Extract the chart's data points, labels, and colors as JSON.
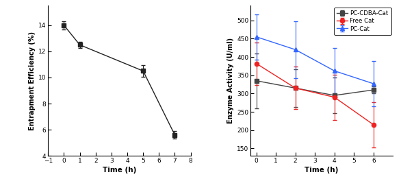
{
  "left": {
    "x": [
      0,
      1,
      5,
      7
    ],
    "y": [
      14.0,
      12.5,
      10.5,
      5.6
    ],
    "yerr": [
      0.3,
      0.25,
      0.45,
      0.3
    ],
    "xlabel": "Time (h)",
    "ylabel": "Entrapment Efficiency (%)",
    "xlim": [
      -1,
      8
    ],
    "ylim": [
      4,
      15.5
    ],
    "xticks": [
      -1,
      0,
      1,
      2,
      3,
      4,
      5,
      6,
      7,
      8
    ],
    "yticks": [
      4,
      6,
      8,
      10,
      12,
      14
    ],
    "color": "#222222",
    "marker": "s",
    "markersize": 4.5
  },
  "right": {
    "series": [
      {
        "label": "PC-CDBA-Cat",
        "x": [
          0,
          2,
          4,
          6
        ],
        "y": [
          335,
          315,
          295,
          310
        ],
        "yerr": [
          75,
          52,
          48,
          10
        ],
        "color": "#444444",
        "marker": "s",
        "markersize": 4.5
      },
      {
        "label": "Free Cat",
        "x": [
          0,
          2,
          4,
          6
        ],
        "y": [
          382,
          315,
          290,
          215
        ],
        "yerr": [
          58,
          58,
          62,
          62
        ],
        "color": "#ee2222",
        "marker": "o",
        "markersize": 4.5
      },
      {
        "label": "PC-Cat",
        "x": [
          0,
          2,
          4,
          6
        ],
        "y": [
          455,
          420,
          362,
          327
        ],
        "yerr": [
          62,
          78,
          62,
          62
        ],
        "color": "#3366ff",
        "marker": "^",
        "markersize": 5
      }
    ],
    "xlabel": "Time (h)",
    "ylabel": "Enzyme Activity (U/ml)",
    "xlim": [
      -0.3,
      7
    ],
    "ylim": [
      130,
      540
    ],
    "xticks": [
      0,
      1,
      2,
      3,
      4,
      5,
      6
    ],
    "yticks": [
      150,
      200,
      250,
      300,
      350,
      400,
      450,
      500
    ]
  }
}
